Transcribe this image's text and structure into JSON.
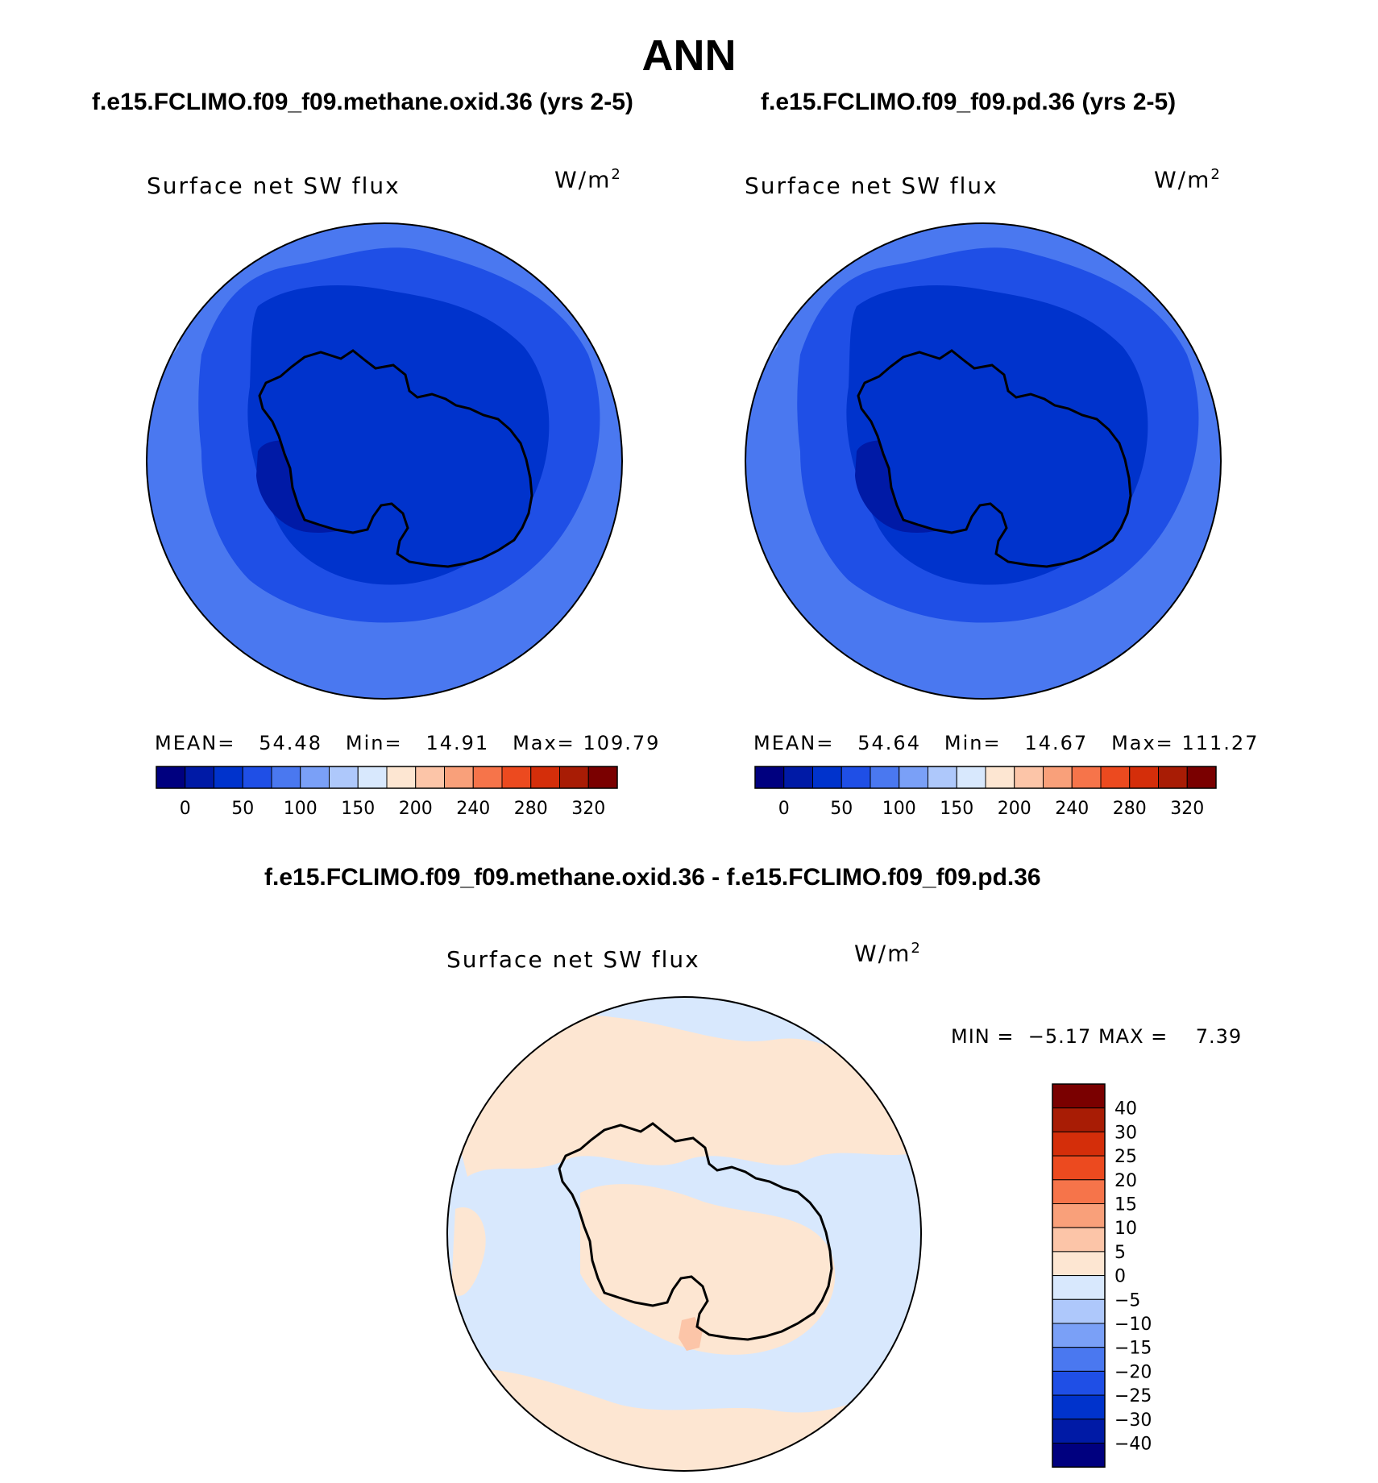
{
  "page_title": "ANN",
  "panels": [
    {
      "case_title": "f.e15.FCLIMO.f09_f09.methane.oxid.36 (yrs 2-5)",
      "variable": "Surface net SW flux",
      "units_base": "W/m",
      "units_exp": "2",
      "stats": {
        "mean_label": "MEAN=",
        "mean_value": "54.48",
        "min_label": "Min=",
        "min_value": "14.91",
        "max_label": "Max=",
        "max_value": "109.79"
      },
      "colorbar_labels": [
        "0",
        "50",
        "100",
        "150",
        "200",
        "240",
        "280",
        "320"
      ]
    },
    {
      "case_title": "f.e15.FCLIMO.f09_f09.pd.36 (yrs 2-5)",
      "variable": "Surface net SW flux",
      "units_base": "W/m",
      "units_exp": "2",
      "stats": {
        "mean_label": "MEAN=",
        "mean_value": "54.64",
        "min_label": "Min=",
        "min_value": "14.67",
        "max_label": "Max=",
        "max_value": "111.27"
      },
      "colorbar_labels": [
        "0",
        "50",
        "100",
        "150",
        "200",
        "240",
        "280",
        "320"
      ]
    }
  ],
  "difference": {
    "title": "f.e15.FCLIMO.f09_f09.methane.oxid.36 - f.e15.FCLIMO.f09_f09.pd.36",
    "variable": "Surface net SW flux",
    "units_base": "W/m",
    "units_exp": "2",
    "min_label": "MIN =",
    "min_value": "−5.17",
    "max_label": "MAX =",
    "max_value": "7.39",
    "colorbar_labels": [
      "40",
      "30",
      "25",
      "20",
      "15",
      "10",
      "5",
      "0",
      "−5",
      "−10",
      "−15",
      "−20",
      "−25",
      "−30",
      "−40"
    ]
  },
  "colors": {
    "abs_colorbar": [
      "#00007f",
      "#001aa6",
      "#0033cc",
      "#1f4fe6",
      "#4a78f0",
      "#7aa0f7",
      "#aec8fb",
      "#d8e8fd",
      "#fde6d2",
      "#fcc5a8",
      "#f9a07a",
      "#f6744a",
      "#ec4a1f",
      "#d42e0a",
      "#a81c05",
      "#7a0000"
    ],
    "diff_colorbar": [
      "#7a0000",
      "#a81c05",
      "#d42e0a",
      "#ec4a1f",
      "#f6744a",
      "#f9a07a",
      "#fcc5a8",
      "#fde6d2",
      "#d8e8fd",
      "#aec8fb",
      "#7aa0f7",
      "#4a78f0",
      "#1f4fe6",
      "#0033cc",
      "#001aa6",
      "#00007f"
    ],
    "map_outer": "#4a78f0",
    "map_middle": "#1f4fe6",
    "map_inner": "#0033cc",
    "map_darkest": "#001aa6",
    "diff_positive": "#fde6d2",
    "diff_negative": "#d8e8fd",
    "diff_high": "#fcc5a8"
  }
}
